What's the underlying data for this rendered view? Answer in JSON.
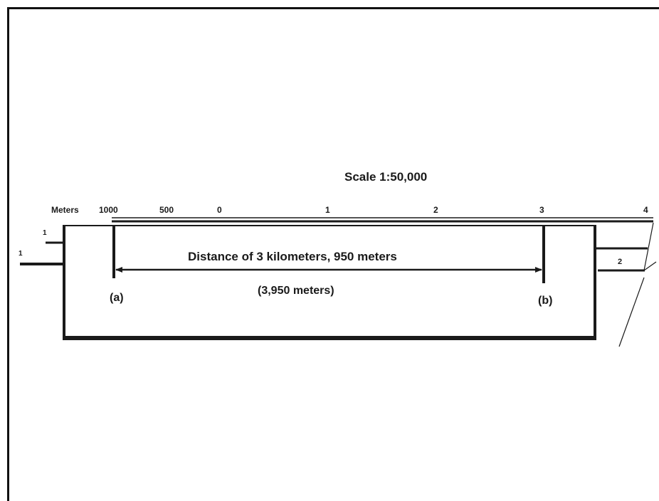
{
  "diagram": {
    "scale_title": "Scale 1:50,000",
    "units_label": "Meters",
    "ticks": [
      "1000",
      "500",
      "0",
      "1",
      "2",
      "3",
      "4"
    ],
    "distance_label": "Distance of 3 kilometers,  950 meters",
    "distance_meters": "(3,950 meters)",
    "point_a": "(a)",
    "point_b": "(b)",
    "edge_marks": [
      "1",
      "1",
      "2"
    ]
  },
  "colors": {
    "ink": "#1a1a1a",
    "frame": "#111111",
    "background": "#ffffff"
  }
}
